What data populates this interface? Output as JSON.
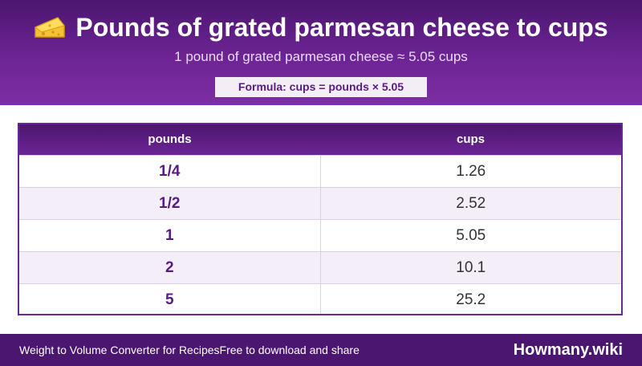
{
  "header": {
    "title": "Pounds of grated parmesan cheese to cups",
    "title_icon": "cheese-icon",
    "subtitle": "1 pound of grated parmesan cheese ≈ 5.05 cups",
    "formula": "Formula: cups = pounds × 5.05"
  },
  "table": {
    "headers": [
      "pounds",
      "cups"
    ],
    "rows": [
      {
        "pounds": "1/4",
        "cups": "1.26"
      },
      {
        "pounds": "1/2",
        "cups": "2.52"
      },
      {
        "pounds": "1",
        "cups": "5.05"
      },
      {
        "pounds": "2",
        "cups": "10.1"
      },
      {
        "pounds": "5",
        "cups": "25.2"
      }
    ]
  },
  "footer": {
    "converter_link": "Weight to Volume Converter for Recipes",
    "tagline": "Free to download and share",
    "brand": "Howmany.wiki"
  },
  "colors": {
    "header_purple": "#6d2494",
    "dark_purple": "#4b1670",
    "label_purple": "#5a1a85",
    "row_alt": "#f3eef7"
  }
}
